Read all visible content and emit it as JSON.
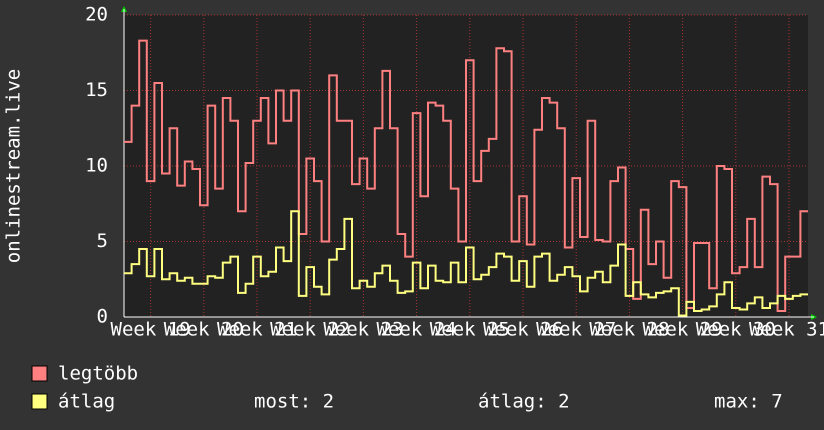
{
  "chart_data": {
    "type": "line",
    "y_label": "onlinestream.live",
    "xlim": [
      0,
      90
    ],
    "ylim": [
      0,
      20
    ],
    "yticks": [
      0,
      5,
      10,
      15,
      20
    ],
    "grid": true,
    "xticks": [
      {
        "value": 3.5,
        "label": "Week 19"
      },
      {
        "value": 10.5,
        "label": "Week 20"
      },
      {
        "value": 17.5,
        "label": "Week 21"
      },
      {
        "value": 24.5,
        "label": "Week 22"
      },
      {
        "value": 31.5,
        "label": "Week 23"
      },
      {
        "value": 38.5,
        "label": "Week 24"
      },
      {
        "value": 45.5,
        "label": "Week 25"
      },
      {
        "value": 52.5,
        "label": "Week 26"
      },
      {
        "value": 59.5,
        "label": "Week 27"
      },
      {
        "value": 66.5,
        "label": "Week 28"
      },
      {
        "value": 73.5,
        "label": "Week 29"
      },
      {
        "value": 80.5,
        "label": "Week 30"
      },
      {
        "value": 87.5,
        "label": "Week 31"
      }
    ],
    "series": [
      {
        "name": "legtöbb",
        "color": "#ff8080",
        "values": [
          11.6,
          14,
          18.3,
          9,
          15.5,
          9.5,
          12.5,
          8.7,
          10.3,
          9.8,
          7.4,
          14,
          8.5,
          14.5,
          13,
          7,
          10.2,
          13,
          14.5,
          11.5,
          15,
          13,
          15,
          5.5,
          10.5,
          9,
          5,
          16,
          13,
          13,
          8.8,
          10.5,
          8.5,
          12.5,
          16.3,
          12.5,
          5.5,
          4,
          13.5,
          8,
          14.2,
          14,
          13,
          8.5,
          5,
          17,
          9,
          11,
          11.8,
          17.8,
          17.6,
          5,
          8,
          4.8,
          12.4,
          14.5,
          14.2,
          12.5,
          4.6,
          9.2,
          5.3,
          13,
          5.1,
          5,
          9,
          9.9,
          4.5,
          1.2,
          7.1,
          3.5,
          5,
          2.6,
          9,
          8.6,
          0.6,
          4.9,
          4.9,
          1.9,
          10,
          9.8,
          2.9,
          3.3,
          6.5,
          3.3,
          9.3,
          8.8,
          0.4,
          4,
          4,
          7
        ]
      },
      {
        "name": "átlag",
        "color": "#ffff80",
        "values": [
          2.9,
          3.5,
          4.5,
          2.7,
          4.5,
          2.5,
          2.9,
          2.4,
          2.6,
          2.2,
          2.2,
          2.7,
          2.6,
          3.6,
          4,
          1.6,
          2.2,
          4,
          2.7,
          3,
          4.6,
          3.7,
          7,
          1.4,
          3.3,
          2,
          1.5,
          3.8,
          4.5,
          6.5,
          1.9,
          2.4,
          2,
          2.9,
          3.4,
          2.4,
          1.6,
          1.7,
          3.6,
          1.9,
          3.4,
          2.4,
          2.3,
          3.6,
          2.3,
          4.6,
          2.5,
          2.8,
          3.3,
          4.2,
          4,
          2.4,
          3.7,
          2,
          4,
          4.2,
          2.4,
          2.8,
          3.3,
          2.7,
          1.7,
          2.6,
          3,
          2.3,
          3.4,
          4.8,
          1.4,
          2.3,
          1.5,
          1.3,
          1.6,
          1.7,
          1.9,
          0.1,
          1,
          0.4,
          0.5,
          0.7,
          1.5,
          2.3,
          0.6,
          0.5,
          0.9,
          1.3,
          0.6,
          0.9,
          1.4,
          1.2,
          1.4,
          1.5
        ]
      }
    ],
    "stats": [
      "most: 2",
      "átlag: 2",
      "max: 7"
    ]
  }
}
